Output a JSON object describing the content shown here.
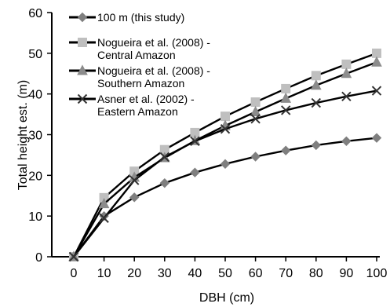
{
  "chart_data": {
    "type": "line",
    "title": "",
    "xlabel": "DBH (cm)",
    "ylabel": "Total height est. (m)",
    "x": [
      0,
      10,
      20,
      30,
      40,
      50,
      60,
      70,
      80,
      90,
      100
    ],
    "xlim": [
      0,
      100
    ],
    "ylim": [
      0,
      60
    ],
    "x_ticks": [
      "0",
      "10",
      "20",
      "30",
      "40",
      "50",
      "60",
      "70",
      "80",
      "90",
      "100"
    ],
    "y_ticks": [
      "0",
      "10",
      "20",
      "30",
      "40",
      "50",
      "60"
    ],
    "grid": false,
    "legend_position": "top-left",
    "series": [
      {
        "name": "100 m (this study)",
        "marker": "diamond",
        "line_color": "#000000",
        "marker_color": "#7f7f7f",
        "values": [
          0,
          10.0,
          14.6,
          18.1,
          20.7,
          22.8,
          24.6,
          26.1,
          27.4,
          28.4,
          29.2
        ]
      },
      {
        "name": "Nogueira et al. (2008) - Central Amazon",
        "marker": "square",
        "line_color": "#000000",
        "marker_color": "#bfbfbf",
        "values": [
          0,
          14.5,
          21.0,
          26.3,
          30.5,
          34.5,
          38.0,
          41.3,
          44.5,
          47.3,
          50.0
        ]
      },
      {
        "name": "Nogueira et al. (2008) - Southern Amazon",
        "marker": "triangle",
        "line_color": "#000000",
        "marker_color": "#8c8c8c",
        "values": [
          0,
          13.0,
          19.5,
          24.3,
          28.5,
          32.2,
          35.6,
          38.9,
          42.1,
          45.0,
          47.8
        ]
      },
      {
        "name": "Asner et al. (2002) - Eastern Amazon",
        "marker": "x",
        "line_color": "#000000",
        "marker_color": "#333333",
        "values": [
          0,
          9.5,
          18.8,
          24.5,
          28.4,
          31.4,
          33.9,
          36.0,
          37.8,
          39.4,
          40.8
        ]
      }
    ]
  },
  "legend": {
    "items": [
      {
        "lines": [
          "100 m (this study)"
        ]
      },
      {
        "lines": [
          "Nogueira et al. (2008) -",
          "Central Amazon"
        ]
      },
      {
        "lines": [
          "Nogueira et al. (2008) -",
          "Southern Amazon"
        ]
      },
      {
        "lines": [
          "Asner et al. (2002) -",
          "Eastern Amazon"
        ]
      }
    ]
  }
}
